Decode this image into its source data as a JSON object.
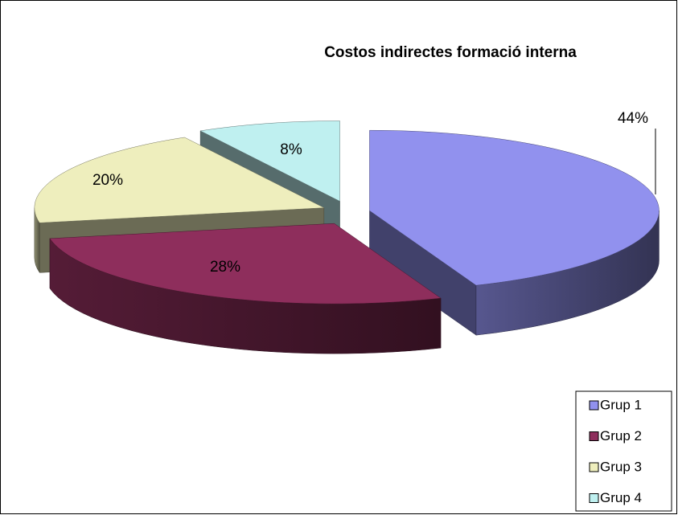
{
  "chart_data": {
    "type": "pie3d",
    "title": "Costos indirectes formació interna",
    "categories": [
      "Grup 1",
      "Grup 2",
      "Grup 3",
      "Grup 4"
    ],
    "values": [
      44,
      28,
      20,
      8
    ],
    "value_labels": [
      "44%",
      "28%",
      "20%",
      "8%"
    ],
    "colors": [
      "#9191ee",
      "#8e2e5c",
      "#eeeebd",
      "#bff0f0"
    ],
    "legend": "bottom-right"
  }
}
